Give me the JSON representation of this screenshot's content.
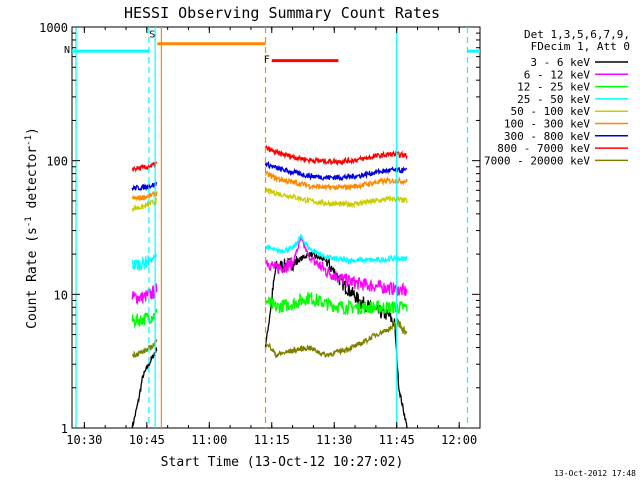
{
  "chart_data": {
    "type": "line",
    "title": "HESSI Observing Summary Count Rates",
    "xlabel": "Start Time (13-Oct-12 10:27:02)",
    "ylabel": "Count Rate (s",
    "ylabel_sup": "-1",
    "ylabel_tail": " detector",
    "ylabel_end": ")",
    "x_range_minutes": [
      10.45,
      12.36
    ],
    "x_range_minutes_unit_note": "",
    "xlim": [
      "10:27:02",
      "12:05"
    ],
    "ylim": [
      1,
      1000
    ],
    "yscale": "log",
    "x_ticks": [
      "10:30",
      "10:45",
      "11:00",
      "11:15",
      "11:30",
      "11:45",
      "12:00"
    ],
    "y_ticks": [
      "1",
      "10",
      "100",
      "1000"
    ],
    "legend_header": [
      "Det 1,3,5,6,7,9,",
      "FDecim 1, Att 0"
    ],
    "legend_placement": "right",
    "timestamp": "13-Oct-2012 17:48",
    "series": [
      {
        "name": "3 - 6 keV",
        "color": "#000000",
        "segments": [
          {
            "t": [
              "10:41:30",
              "10:43",
              "10:44",
              "10:45",
              "10:46",
              "10:47:30"
            ],
            "y": [
              1.0,
              1.6,
              2.4,
              2.8,
              3.2,
              4.0
            ]
          },
          {
            "t": [
              "11:13:30",
              "11:16",
              "11:20",
              "11:24",
              "11:28",
              "11:32",
              "11:36",
              "11:40",
              "11:43",
              "11:44:30",
              "11:45:30",
              "11:47:30"
            ],
            "y": [
              4.0,
              16.0,
              17.0,
              20.0,
              18.0,
              12.0,
              9.0,
              7.5,
              7.0,
              6.0,
              2.0,
              1.0
            ]
          }
        ]
      },
      {
        "name": "6 - 12 keV",
        "color": "#ff00ff",
        "segments": [
          {
            "t": [
              "10:41:30",
              "10:44",
              "10:46",
              "10:47:30"
            ],
            "y": [
              9.5,
              9.5,
              10.0,
              11.0
            ]
          },
          {
            "t": [
              "11:13:30",
              "11:16",
              "11:20",
              "11:22",
              "11:24",
              "11:28",
              "11:32",
              "11:36",
              "11:40",
              "11:44",
              "11:47:30"
            ],
            "y": [
              18.0,
              15.5,
              17.0,
              26.0,
              19.0,
              15.0,
              13.0,
              12.0,
              11.5,
              11.0,
              10.5
            ]
          }
        ]
      },
      {
        "name": "12 - 25 keV",
        "color": "#00ff00",
        "segments": [
          {
            "t": [
              "10:41:30",
              "10:44",
              "10:46",
              "10:47:30"
            ],
            "y": [
              6.3,
              6.5,
              6.8,
              7.2
            ]
          },
          {
            "t": [
              "11:13:30",
              "11:16",
              "11:20",
              "11:24",
              "11:28",
              "11:32",
              "11:36",
              "11:40",
              "11:44",
              "11:47:30"
            ],
            "y": [
              9.0,
              8.0,
              8.5,
              9.5,
              8.5,
              8.0,
              8.0,
              8.0,
              8.0,
              8.0
            ]
          }
        ]
      },
      {
        "name": "25 - 50 keV",
        "color": "#00ffff",
        "segments": [
          {
            "t": [
              "10:41:30",
              "10:44",
              "10:46",
              "10:47:30"
            ],
            "y": [
              16.5,
              17.0,
              18.0,
              19.5
            ]
          },
          {
            "t": [
              "11:13:30",
              "11:16",
              "11:20",
              "11:22",
              "11:24",
              "11:28",
              "11:32",
              "11:36",
              "11:40",
              "11:44",
              "11:47:30"
            ],
            "y": [
              23.0,
              21.0,
              22.0,
              27.0,
              22.0,
              19.0,
              18.0,
              18.0,
              18.0,
              18.5,
              18.5
            ]
          }
        ]
      },
      {
        "name": "50 - 100 keV",
        "color": "#cccc00",
        "segments": [
          {
            "t": [
              "10:41:30",
              "10:44",
              "10:46",
              "10:47:30"
            ],
            "y": [
              44.0,
              45.0,
              48.0,
              50.0
            ]
          },
          {
            "t": [
              "11:13:30",
              "11:16",
              "11:20",
              "11:24",
              "11:28",
              "11:32",
              "11:36",
              "11:40",
              "11:44",
              "11:47:30"
            ],
            "y": [
              60.0,
              57.0,
              54.0,
              50.0,
              48.0,
              47.0,
              48.0,
              50.0,
              52.0,
              50.0
            ]
          }
        ]
      },
      {
        "name": "100 - 300 keV",
        "color": "#ff8800",
        "segments": [
          {
            "t": [
              "10:41:30",
              "10:44",
              "10:46",
              "10:47:30"
            ],
            "y": [
              52.0,
              53.0,
              55.0,
              57.0
            ]
          },
          {
            "t": [
              "11:13:30",
              "11:16",
              "11:20",
              "11:24",
              "11:28",
              "11:32",
              "11:36",
              "11:40",
              "11:44",
              "11:47:30"
            ],
            "y": [
              80.0,
              74.0,
              69.0,
              65.0,
              63.0,
              63.0,
              65.0,
              69.0,
              71.0,
              70.0
            ]
          }
        ]
      },
      {
        "name": "300 - 800 keV",
        "color": "#0000dd",
        "segments": [
          {
            "t": [
              "10:41:30",
              "10:44",
              "10:46",
              "10:47:30"
            ],
            "y": [
              62.0,
              63.0,
              65.0,
              67.0
            ]
          },
          {
            "t": [
              "11:13:30",
              "11:16",
              "11:20",
              "11:24",
              "11:28",
              "11:32",
              "11:36",
              "11:40",
              "11:44",
              "11:47:30"
            ],
            "y": [
              95.0,
              88.0,
              82.0,
              77.0,
              75.0,
              75.0,
              77.0,
              82.0,
              85.0,
              84.0
            ]
          }
        ]
      },
      {
        "name": "800 - 7000 keV",
        "color": "#ff0000",
        "segments": [
          {
            "t": [
              "10:41:30",
              "10:44",
              "10:46",
              "10:47:30"
            ],
            "y": [
              87.0,
              88.0,
              91.0,
              95.0
            ]
          },
          {
            "t": [
              "11:13:30",
              "11:16",
              "11:20",
              "11:24",
              "11:28",
              "11:32",
              "11:36",
              "11:40",
              "11:44",
              "11:47:30"
            ],
            "y": [
              125.0,
              115.0,
              107.0,
              101.0,
              99.0,
              99.0,
              102.0,
              108.0,
              112.0,
              109.0
            ]
          }
        ]
      },
      {
        "name": "7000 - 20000 keV",
        "color": "#808000",
        "segments": [
          {
            "t": [
              "10:41:30",
              "10:44",
              "10:46",
              "10:47:30"
            ],
            "y": [
              3.5,
              3.7,
              4.0,
              4.5
            ]
          },
          {
            "t": [
              "11:13:30",
              "11:16",
              "11:20",
              "11:24",
              "11:28",
              "11:32",
              "11:36",
              "11:40",
              "11:43",
              "11:46",
              "11:47:30"
            ],
            "y": [
              4.5,
              3.5,
              3.8,
              4.0,
              3.5,
              3.8,
              4.2,
              5.0,
              5.5,
              6.0,
              5.0
            ]
          }
        ]
      }
    ],
    "flags": [
      {
        "label": "N",
        "color": "#00ffff",
        "t": [
          "10:27:02",
          "10:45:30"
        ],
        "y": 660
      },
      {
        "label": "",
        "color": "#00ffff",
        "t": [
          "12:02",
          "12:05"
        ],
        "y": 660
      },
      {
        "label": "S",
        "color": "#ff8800",
        "t": [
          "10:47:30",
          "11:13:30"
        ],
        "y": 750
      },
      {
        "label": "F",
        "color": "#ff0000",
        "t": [
          "11:15",
          "11:31"
        ],
        "y": 560
      }
    ],
    "solid_vlines": [
      {
        "t": "10:28",
        "color": "#00ffff"
      },
      {
        "t": "10:47",
        "color": "#00ffff"
      },
      {
        "t": "10:48:30",
        "color": "#ff8800"
      },
      {
        "t": "11:45",
        "color": "#00ffff"
      }
    ],
    "dashed_vlines": [
      {
        "t": "10:45:30",
        "color": "#00ffff"
      },
      {
        "t": "11:13:30",
        "color": "#ff8800"
      },
      {
        "t": "12:02",
        "color": "#00ffff"
      }
    ]
  }
}
